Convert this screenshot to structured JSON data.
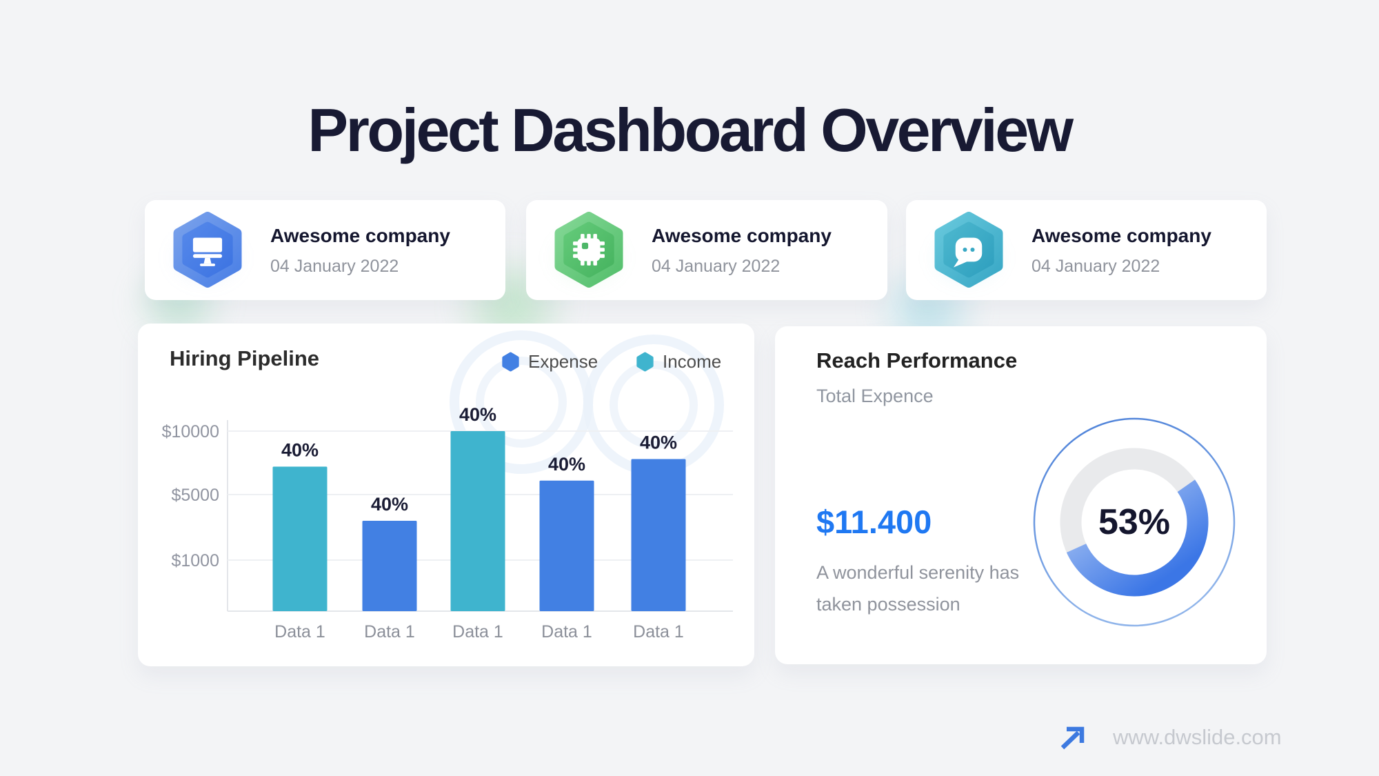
{
  "page": {
    "title": "Project Dashboard Overview",
    "background": "#f3f4f6"
  },
  "info_cards": [
    {
      "company": "Awesome company",
      "date": "04 January 2022",
      "icon": "monitor-icon",
      "hex_color_from": "#79a1eb",
      "hex_color_to": "#4b80e6"
    },
    {
      "company": "Awesome company",
      "date": "04 January 2022",
      "icon": "chip-icon",
      "hex_color_from": "#83d795",
      "hex_color_to": "#54bf6c"
    },
    {
      "company": "Awesome company",
      "date": "04 January 2022",
      "icon": "chat-bubble-icon",
      "hex_color_from": "#67c8dc",
      "hex_color_to": "#39a8c6"
    }
  ],
  "chart_data": [
    {
      "type": "bar",
      "title": "Hiring Pipeline",
      "categories": [
        "Data 1",
        "Data 1",
        "Data 1",
        "Data 1",
        "Data 1"
      ],
      "values": [
        7200,
        3400,
        10000,
        6100,
        7800
      ],
      "bar_series": [
        "Income",
        "Expense",
        "Income",
        "Expense",
        "Expense"
      ],
      "bar_labels": [
        "40%",
        "40%",
        "40%",
        "40%",
        "40%"
      ],
      "legend": [
        "Expense",
        "Income"
      ],
      "colors": {
        "Expense": "#4280e3",
        "Income": "#3fb4ce"
      },
      "y_ticks": [
        {
          "label": "$10000",
          "value": 10000
        },
        {
          "label": "$5000",
          "value": 5000
        },
        {
          "label": "$1000",
          "value": 1000
        }
      ],
      "xlabel": "",
      "ylabel": "",
      "ylim": [
        0,
        10500
      ],
      "grid": true,
      "legend_position": "top-right"
    },
    {
      "type": "donut",
      "title": "Reach Performance",
      "percent": 53,
      "center_label": "53%",
      "segments": [
        {
          "name": "progress",
          "value": 53
        },
        {
          "name": "remainder",
          "value": 47
        }
      ],
      "colors": {
        "track": "#e9eaec",
        "arc_from": "#b7cef5",
        "arc_to": "#3b76e6",
        "outer_ring": "#5b8ade"
      }
    }
  ],
  "reach": {
    "title": "Reach Performance",
    "subtitle": "Total Expence",
    "amount": "$11.400",
    "amount_color": "#1f78f2",
    "description": "A wonderful serenity has taken possession"
  },
  "footer": {
    "url": "www.dwslide.com",
    "arrow_icon": "arrow-up-right-icon",
    "arrow_color": "#3c79e0"
  }
}
